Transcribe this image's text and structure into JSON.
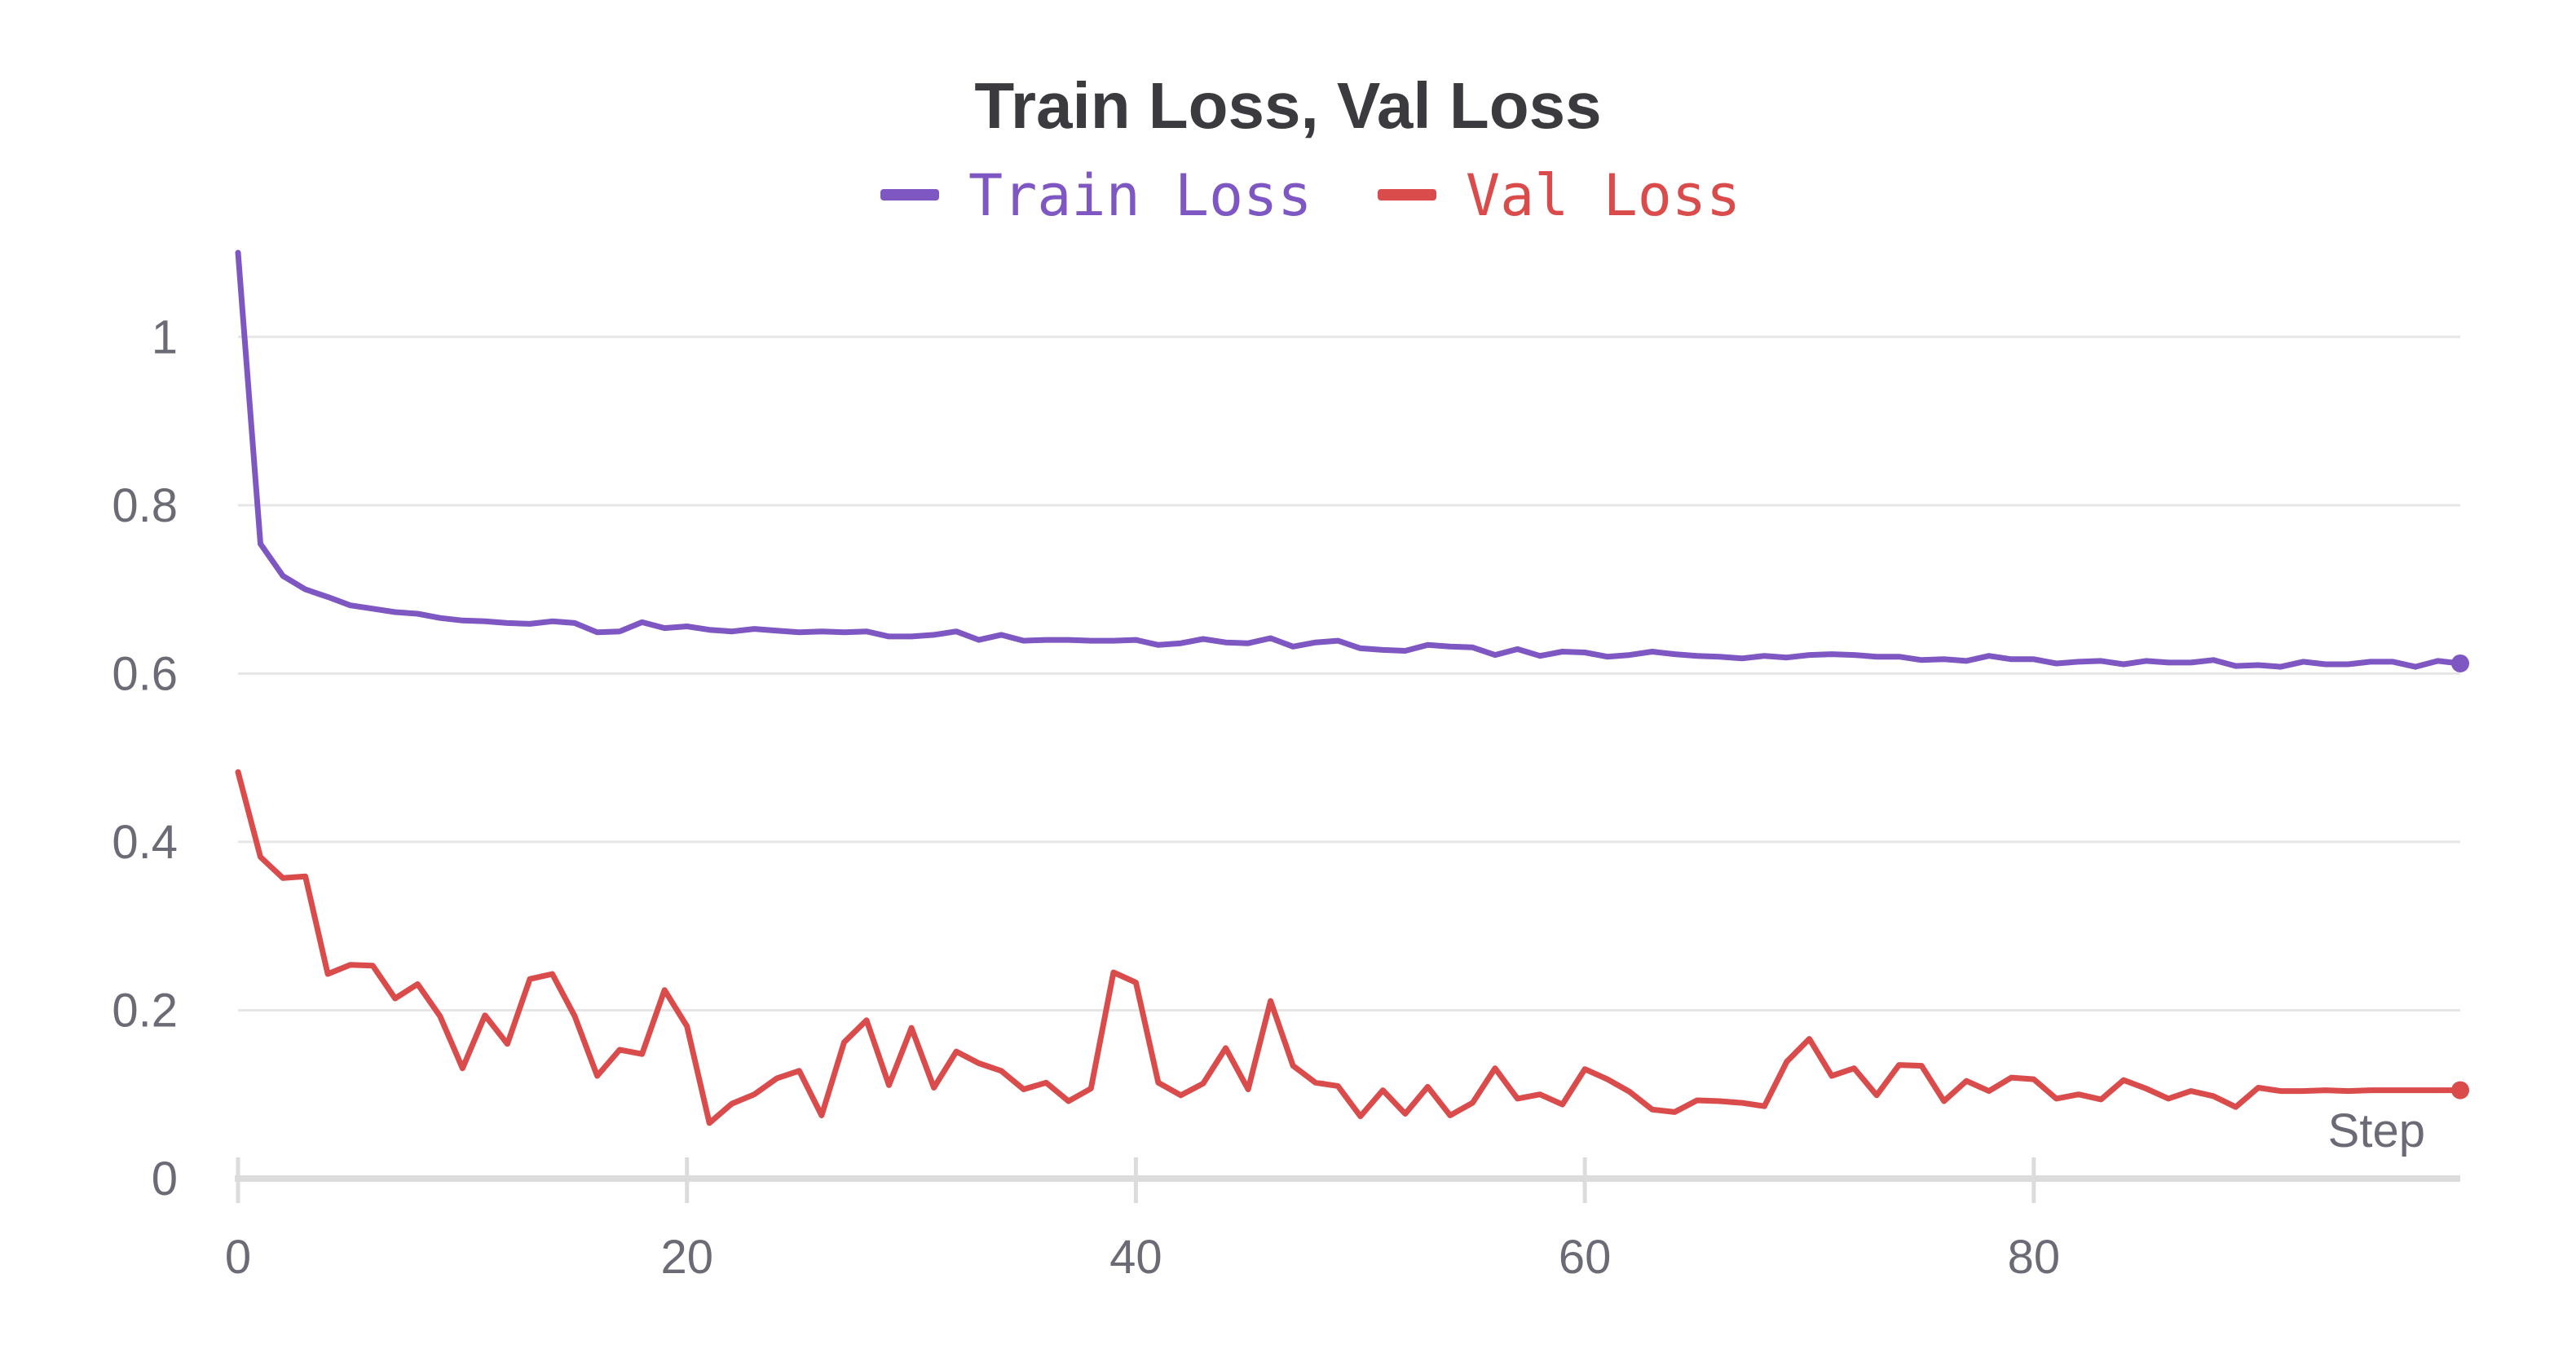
{
  "chart_data": {
    "type": "line",
    "title": "Train Loss, Val Loss",
    "xlabel": "Step",
    "ylabel": "",
    "xlim": [
      0,
      99
    ],
    "ylim": [
      0,
      1.1
    ],
    "x_ticks": [
      "0",
      "20",
      "40",
      "60",
      "80"
    ],
    "x_tick_values": [
      0,
      20,
      40,
      60,
      80
    ],
    "y_ticks": [
      "0",
      "0.2",
      "0.4",
      "0.6",
      "0.8",
      "1"
    ],
    "y_tick_values": [
      0,
      0.2,
      0.4,
      0.6,
      0.8,
      1
    ],
    "grid": true,
    "legend_position": "top-center",
    "x": [
      0,
      1,
      2,
      3,
      4,
      5,
      6,
      7,
      8,
      9,
      10,
      11,
      12,
      13,
      14,
      15,
      16,
      17,
      18,
      19,
      20,
      21,
      22,
      23,
      24,
      25,
      26,
      27,
      28,
      29,
      30,
      31,
      32,
      33,
      34,
      35,
      36,
      37,
      38,
      39,
      40,
      41,
      42,
      43,
      44,
      45,
      46,
      47,
      48,
      49,
      50,
      51,
      52,
      53,
      54,
      55,
      56,
      57,
      58,
      59,
      60,
      61,
      62,
      63,
      64,
      65,
      66,
      67,
      68,
      69,
      70,
      71,
      72,
      73,
      74,
      75,
      76,
      77,
      78,
      79,
      80,
      81,
      82,
      83,
      84,
      85,
      86,
      87,
      88,
      89,
      90,
      91,
      92,
      93,
      94,
      95,
      96,
      97,
      98,
      99
    ],
    "series": [
      {
        "name": "Train Loss",
        "color": "#7e57c2",
        "values": [
          1.1,
          0.754,
          0.716,
          0.7,
          0.691,
          0.681,
          0.677,
          0.673,
          0.671,
          0.666,
          0.663,
          0.662,
          0.66,
          0.659,
          0.662,
          0.66,
          0.649,
          0.65,
          0.661,
          0.654,
          0.656,
          0.652,
          0.65,
          0.653,
          0.651,
          0.649,
          0.65,
          0.649,
          0.65,
          0.644,
          0.644,
          0.646,
          0.65,
          0.64,
          0.646,
          0.639,
          0.64,
          0.64,
          0.639,
          0.639,
          0.64,
          0.634,
          0.636,
          0.641,
          0.637,
          0.636,
          0.642,
          0.632,
          0.637,
          0.639,
          0.63,
          0.628,
          0.627,
          0.634,
          0.632,
          0.631,
          0.622,
          0.629,
          0.621,
          0.626,
          0.625,
          0.62,
          0.622,
          0.626,
          0.623,
          0.621,
          0.62,
          0.618,
          0.621,
          0.619,
          0.622,
          0.623,
          0.622,
          0.62,
          0.62,
          0.616,
          0.617,
          0.615,
          0.621,
          0.617,
          0.617,
          0.612,
          0.614,
          0.615,
          0.611,
          0.615,
          0.613,
          0.613,
          0.616,
          0.609,
          0.61,
          0.608,
          0.614,
          0.611,
          0.611,
          0.614,
          0.614,
          0.608,
          0.615,
          0.612
        ]
      },
      {
        "name": "Val Loss",
        "color": "#da4c4c",
        "values": [
          0.483,
          0.382,
          0.357,
          0.359,
          0.243,
          0.254,
          0.253,
          0.214,
          0.231,
          0.193,
          0.131,
          0.194,
          0.16,
          0.237,
          0.243,
          0.193,
          0.122,
          0.153,
          0.148,
          0.224,
          0.181,
          0.066,
          0.089,
          0.1,
          0.119,
          0.128,
          0.075,
          0.162,
          0.188,
          0.111,
          0.179,
          0.108,
          0.151,
          0.137,
          0.128,
          0.106,
          0.114,
          0.092,
          0.107,
          0.245,
          0.233,
          0.114,
          0.099,
          0.113,
          0.155,
          0.106,
          0.211,
          0.134,
          0.114,
          0.11,
          0.074,
          0.105,
          0.077,
          0.109,
          0.075,
          0.09,
          0.131,
          0.095,
          0.1,
          0.088,
          0.13,
          0.118,
          0.103,
          0.082,
          0.079,
          0.093,
          0.092,
          0.09,
          0.086,
          0.139,
          0.166,
          0.122,
          0.131,
          0.099,
          0.135,
          0.134,
          0.092,
          0.116,
          0.104,
          0.12,
          0.118,
          0.095,
          0.1,
          0.094,
          0.117,
          0.107,
          0.095,
          0.104,
          0.098,
          0.085,
          0.108,
          0.104,
          0.104,
          0.105,
          0.104,
          0.105,
          0.105,
          0.105,
          0.105,
          0.105
        ]
      }
    ]
  }
}
